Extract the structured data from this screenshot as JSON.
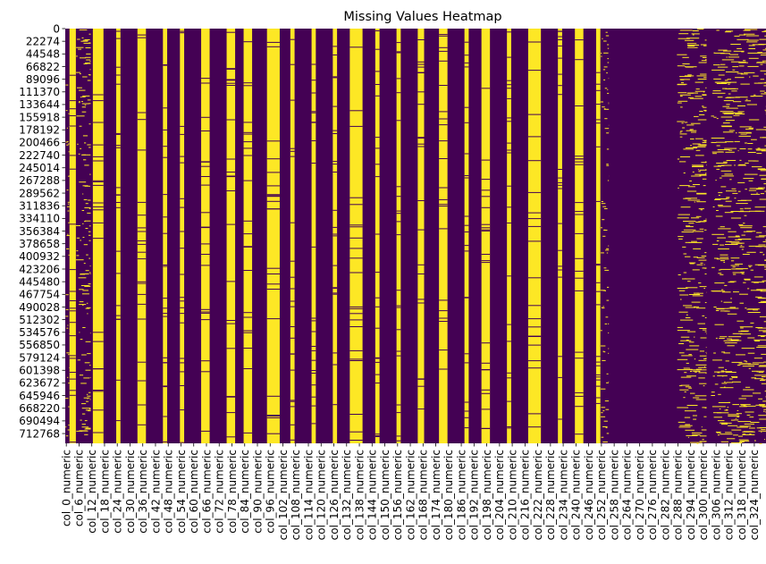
{
  "chart_data": {
    "type": "heatmap",
    "title": "Missing Values Heatmap",
    "xlabel": "",
    "ylabel": "",
    "colormap": "viridis-binary",
    "colors": {
      "present": "#440154",
      "missing": "#fde725"
    },
    "row_tick_labels": [
      "0",
      "22274",
      "44548",
      "66822",
      "89096",
      "111370",
      "133644",
      "155918",
      "178192",
      "200466",
      "222740",
      "245014",
      "267288",
      "289562",
      "311836",
      "334110",
      "356384",
      "378658",
      "400932",
      "423206",
      "445480",
      "467754",
      "490028",
      "512302",
      "534576",
      "556850",
      "579124",
      "601398",
      "623672",
      "645946",
      "668220",
      "690494",
      "712768"
    ],
    "column_tick_labels": [
      "col_0_numeric",
      "col_6_numeric",
      "col_12_numeric",
      "col_18_numeric",
      "col_24_numeric",
      "col_30_numeric",
      "col_36_numeric",
      "col_42_numeric",
      "col_48_numeric",
      "col_54_numeric",
      "col_60_numeric",
      "col_66_numeric",
      "col_72_numeric",
      "col_78_numeric",
      "col_84_numeric",
      "col_90_numeric",
      "col_96_numeric",
      "col_102_numeric",
      "col_108_numeric",
      "col_114_numeric",
      "col_120_numeric",
      "col_126_numeric",
      "col_132_numeric",
      "col_138_numeric",
      "col_144_numeric",
      "col_150_numeric",
      "col_156_numeric",
      "col_162_numeric",
      "col_168_numeric",
      "col_174_numeric",
      "col_180_numeric",
      "col_186_numeric",
      "col_192_numeric",
      "col_198_numeric",
      "col_204_numeric",
      "col_210_numeric",
      "col_216_numeric",
      "col_222_numeric",
      "col_228_numeric",
      "col_234_numeric",
      "col_240_numeric",
      "col_246_numeric",
      "col_252_numeric",
      "col_258_numeric",
      "col_264_numeric",
      "col_270_numeric",
      "col_276_numeric",
      "col_282_numeric",
      "col_288_numeric",
      "col_294_numeric",
      "col_300_numeric",
      "col_306_numeric",
      "col_312_numeric",
      "col_318_numeric",
      "col_324_numeric"
    ],
    "column_tick_step": 6,
    "n_columns": 330,
    "row_tick_step": 22274,
    "n_rows": 730000,
    "missing_column_ranges": [
      [
        2,
        5
      ],
      [
        13,
        18
      ],
      [
        24,
        26
      ],
      [
        34,
        38
      ],
      [
        46,
        48
      ],
      [
        54,
        56
      ],
      [
        64,
        68
      ],
      [
        76,
        80
      ],
      [
        84,
        88
      ],
      [
        95,
        101
      ],
      [
        106,
        108
      ],
      [
        116,
        118
      ],
      [
        126,
        128
      ],
      [
        134,
        140
      ],
      [
        146,
        148
      ],
      [
        156,
        158
      ],
      [
        166,
        169
      ],
      [
        176,
        180
      ],
      [
        188,
        190
      ],
      [
        196,
        200
      ],
      [
        208,
        210
      ],
      [
        218,
        224
      ],
      [
        232,
        234
      ],
      [
        240,
        244
      ],
      [
        250,
        252
      ]
    ],
    "sparse_column_ranges": [
      [
        0,
        2
      ],
      [
        5,
        12
      ],
      [
        252,
        256
      ],
      [
        288,
        302
      ],
      [
        304,
        330
      ]
    ],
    "fully_present_column_ranges": [
      [
        256,
        288
      ],
      [
        302,
        304
      ]
    ],
    "cbar": false,
    "grid": false
  }
}
